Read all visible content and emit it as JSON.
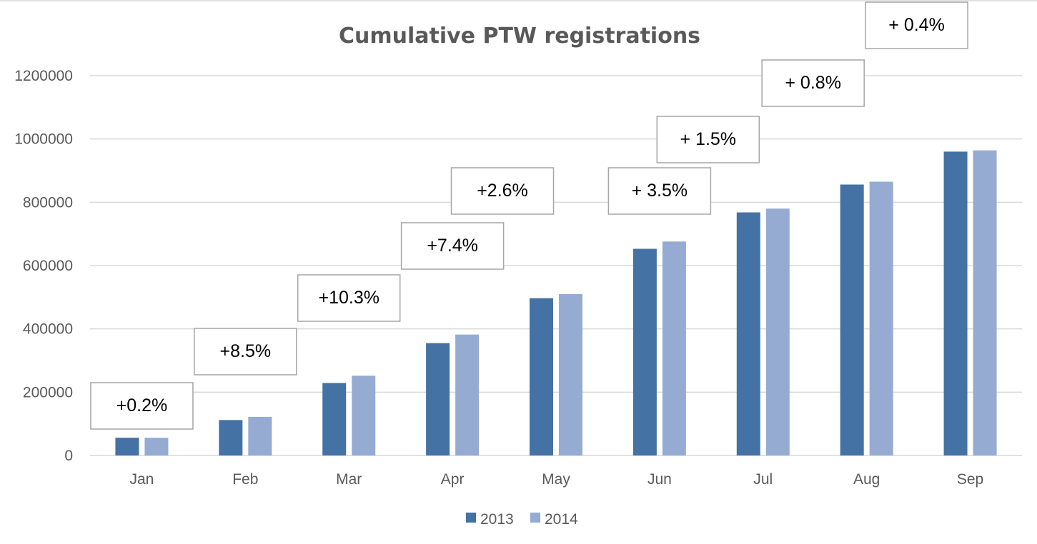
{
  "chart_data": {
    "type": "bar",
    "title": "Cumulative PTW registrations",
    "xlabel": "",
    "ylabel": "",
    "categories": [
      "Jan",
      "Feb",
      "Mar",
      "Apr",
      "May",
      "Jun",
      "Jul",
      "Aug",
      "Sep"
    ],
    "series": [
      {
        "name": "2013",
        "color": "#4472a4",
        "values": [
          56000,
          112000,
          229000,
          355000,
          497000,
          653000,
          768000,
          856000,
          960000
        ]
      },
      {
        "name": "2014",
        "color": "#95abd2",
        "values": [
          56000,
          122000,
          252000,
          382000,
          510000,
          676000,
          780000,
          865000,
          964000
        ]
      }
    ],
    "ylim": [
      0,
      1200000
    ],
    "yticks": [
      "0",
      "200000",
      "400000",
      "600000",
      "800000",
      "1000000",
      "1200000"
    ],
    "grid": true,
    "gridline_color": "#d9d9d9",
    "legend_position": "bottom",
    "annotations": [
      "+0.2%",
      "+8.5%",
      "+10.3%",
      "+7.4%",
      "+2.6%",
      "+ 3.5%",
      "+ 1.5%",
      "+ 0.8%",
      "+ 0.4%"
    ]
  }
}
